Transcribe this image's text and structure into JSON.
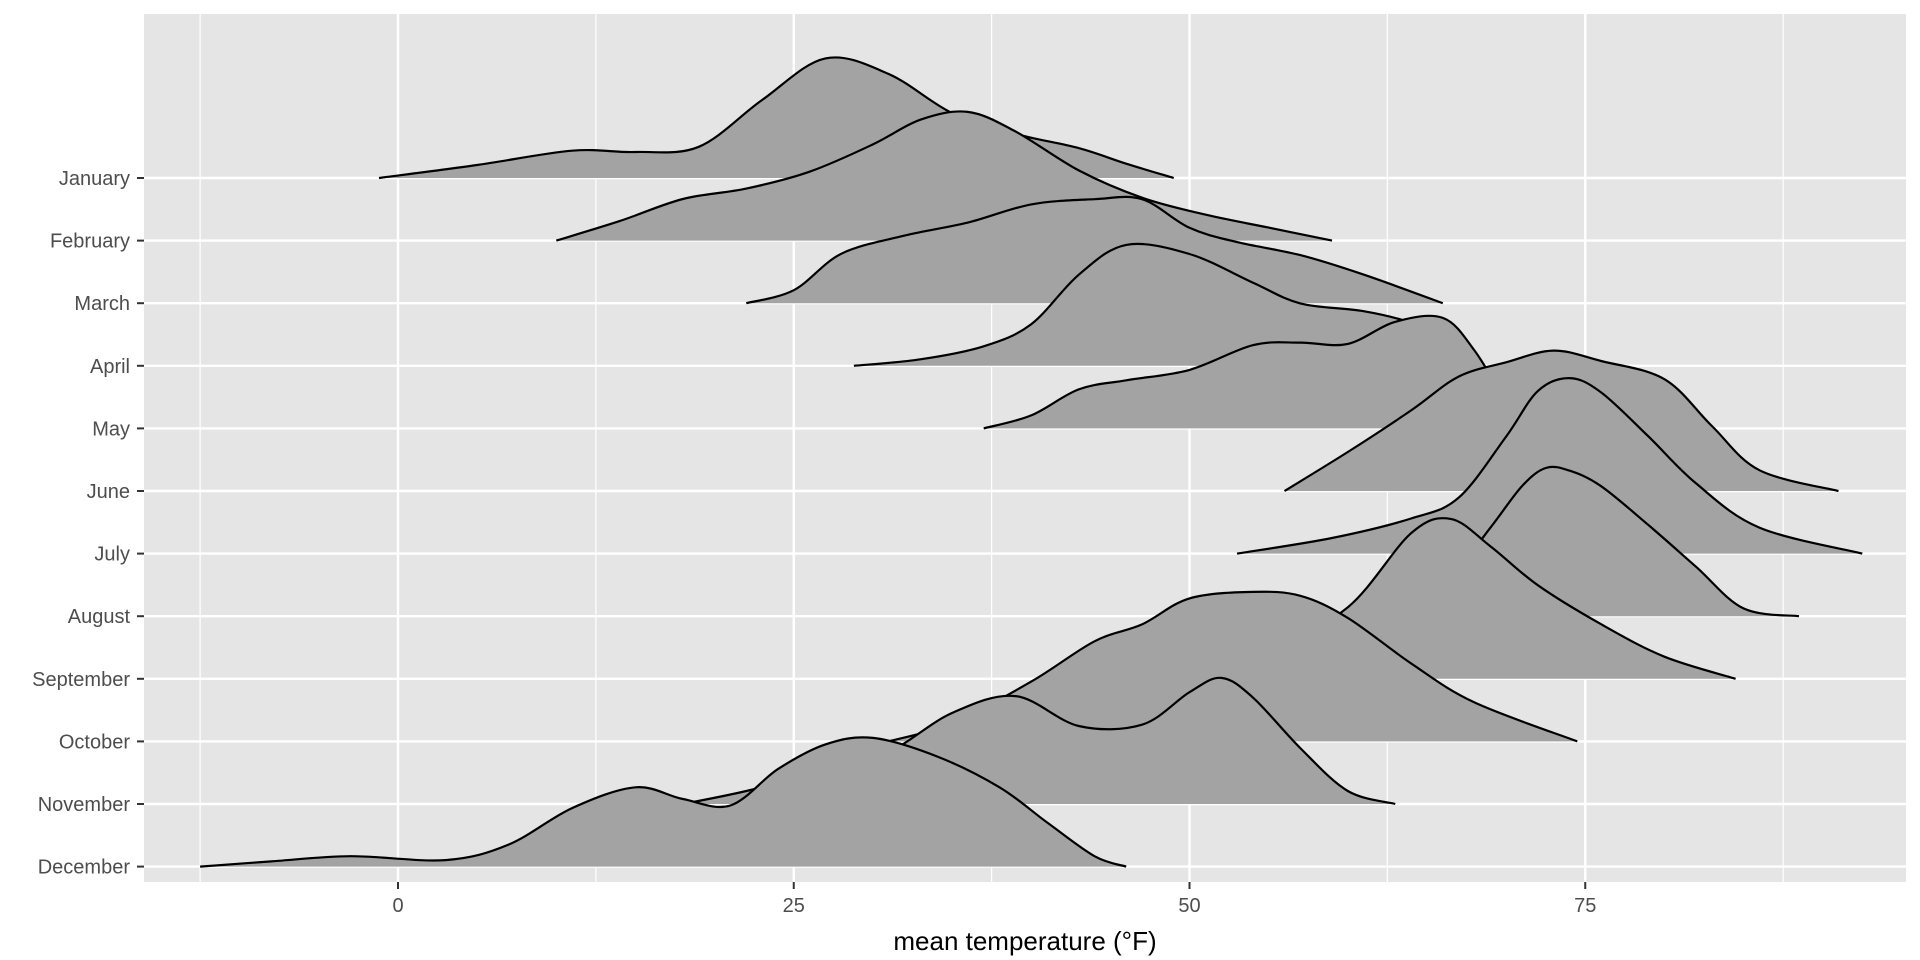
{
  "chart_data": {
    "type": "ridgeline",
    "title": "",
    "xlabel": "mean temperature (°F)",
    "ylabel": "",
    "xlim": [
      -12.5,
      95
    ],
    "x_ticks": [
      0,
      25,
      50,
      75
    ],
    "x_tick_labels": [
      "0",
      "25",
      "50",
      "75"
    ],
    "grid": true,
    "legend": "none",
    "colors": {
      "panel": "#e5e5e5",
      "grid": "#ffffff",
      "fill": "#a3a3a3",
      "outline": "#000000",
      "text": "#4d4d4d",
      "ticks": "#333333"
    },
    "categories": [
      "January",
      "February",
      "March",
      "April",
      "May",
      "June",
      "July",
      "August",
      "September",
      "October",
      "November",
      "December"
    ],
    "series": [
      {
        "name": "January",
        "points": [
          [
            -1.2,
            0.0
          ],
          [
            5,
            0.1
          ],
          [
            11,
            0.21
          ],
          [
            15,
            0.2
          ],
          [
            19,
            0.24
          ],
          [
            23,
            0.6
          ],
          [
            27,
            0.92
          ],
          [
            31,
            0.8
          ],
          [
            35,
            0.5
          ],
          [
            39,
            0.34
          ],
          [
            43,
            0.23
          ],
          [
            46,
            0.11
          ],
          [
            49,
            0.0
          ]
        ]
      },
      {
        "name": "February",
        "points": [
          [
            10,
            0.0
          ],
          [
            14,
            0.15
          ],
          [
            18,
            0.32
          ],
          [
            22,
            0.4
          ],
          [
            26,
            0.53
          ],
          [
            30,
            0.74
          ],
          [
            33,
            0.93
          ],
          [
            36,
            0.99
          ],
          [
            39,
            0.84
          ],
          [
            43,
            0.54
          ],
          [
            47,
            0.33
          ],
          [
            51,
            0.2
          ],
          [
            55,
            0.1
          ],
          [
            59,
            0.0
          ]
        ]
      },
      {
        "name": "March",
        "points": [
          [
            22,
            0.0
          ],
          [
            25,
            0.1
          ],
          [
            28,
            0.38
          ],
          [
            32,
            0.52
          ],
          [
            36,
            0.62
          ],
          [
            40,
            0.76
          ],
          [
            44,
            0.8
          ],
          [
            47,
            0.8
          ],
          [
            50,
            0.58
          ],
          [
            53,
            0.47
          ],
          [
            57,
            0.37
          ],
          [
            61,
            0.22
          ],
          [
            66,
            0.0
          ]
        ]
      },
      {
        "name": "April",
        "points": [
          [
            28.8,
            0.0
          ],
          [
            33,
            0.05
          ],
          [
            37,
            0.15
          ],
          [
            40,
            0.32
          ],
          [
            43,
            0.7
          ],
          [
            46,
            0.93
          ],
          [
            50,
            0.86
          ],
          [
            54,
            0.64
          ],
          [
            57,
            0.48
          ],
          [
            61,
            0.42
          ],
          [
            64,
            0.33
          ],
          [
            66,
            0.2
          ],
          [
            67,
            0.0
          ]
        ]
      },
      {
        "name": "May",
        "points": [
          [
            37,
            0.0
          ],
          [
            40,
            0.1
          ],
          [
            43,
            0.3
          ],
          [
            46,
            0.37
          ],
          [
            50,
            0.45
          ],
          [
            54,
            0.64
          ],
          [
            57,
            0.66
          ],
          [
            60,
            0.65
          ],
          [
            63,
            0.82
          ],
          [
            66,
            0.85
          ],
          [
            68,
            0.6
          ],
          [
            70,
            0.2
          ],
          [
            71,
            0.0
          ]
        ]
      },
      {
        "name": "June",
        "points": [
          [
            56,
            0.0
          ],
          [
            60,
            0.3
          ],
          [
            64,
            0.62
          ],
          [
            67,
            0.88
          ],
          [
            70,
            0.99
          ],
          [
            73,
            1.08
          ],
          [
            76,
            1.0
          ],
          [
            80,
            0.86
          ],
          [
            83,
            0.5
          ],
          [
            86,
            0.16
          ],
          [
            91,
            0.0
          ]
        ]
      },
      {
        "name": "July",
        "points": [
          [
            53,
            0.0
          ],
          [
            59,
            0.12
          ],
          [
            64,
            0.27
          ],
          [
            67,
            0.43
          ],
          [
            70,
            0.9
          ],
          [
            72,
            1.25
          ],
          [
            74,
            1.35
          ],
          [
            76,
            1.24
          ],
          [
            79,
            0.9
          ],
          [
            82,
            0.54
          ],
          [
            86,
            0.2
          ],
          [
            92.5,
            0.0
          ]
        ]
      },
      {
        "name": "August",
        "points": [
          [
            63,
            0.0
          ],
          [
            66,
            0.22
          ],
          [
            69,
            0.68
          ],
          [
            71,
            1.0
          ],
          [
            72.5,
            1.14
          ],
          [
            74,
            1.12
          ],
          [
            76,
            1.0
          ],
          [
            79,
            0.7
          ],
          [
            82,
            0.38
          ],
          [
            85,
            0.06
          ],
          [
            88.5,
            0.0
          ]
        ]
      },
      {
        "name": "September",
        "points": [
          [
            50,
            0.0
          ],
          [
            55,
            0.22
          ],
          [
            60,
            0.55
          ],
          [
            64,
            1.12
          ],
          [
            66.5,
            1.23
          ],
          [
            69,
            1.02
          ],
          [
            72,
            0.72
          ],
          [
            76,
            0.42
          ],
          [
            80,
            0.17
          ],
          [
            84.5,
            0.0
          ]
        ]
      },
      {
        "name": "October",
        "points": [
          [
            31,
            0.0
          ],
          [
            35,
            0.14
          ],
          [
            40,
            0.46
          ],
          [
            44,
            0.77
          ],
          [
            47,
            0.9
          ],
          [
            50,
            1.1
          ],
          [
            54,
            1.15
          ],
          [
            57,
            1.12
          ],
          [
            60,
            0.95
          ],
          [
            64,
            0.6
          ],
          [
            68,
            0.3
          ],
          [
            74.5,
            0.0
          ]
        ]
      },
      {
        "name": "November",
        "points": [
          [
            18,
            0.0
          ],
          [
            22,
            0.1
          ],
          [
            27,
            0.26
          ],
          [
            31,
            0.4
          ],
          [
            35,
            0.7
          ],
          [
            39,
            0.83
          ],
          [
            43,
            0.6
          ],
          [
            47,
            0.61
          ],
          [
            50,
            0.86
          ],
          [
            52,
            0.97
          ],
          [
            54,
            0.82
          ],
          [
            57,
            0.43
          ],
          [
            60,
            0.1
          ],
          [
            63,
            0.0
          ]
        ]
      },
      {
        "name": "December",
        "points": [
          [
            -12.5,
            0.0
          ],
          [
            -8,
            0.04
          ],
          [
            -3,
            0.08
          ],
          [
            3,
            0.05
          ],
          [
            7,
            0.17
          ],
          [
            11,
            0.45
          ],
          [
            15,
            0.61
          ],
          [
            18,
            0.52
          ],
          [
            21,
            0.47
          ],
          [
            24,
            0.75
          ],
          [
            27,
            0.94
          ],
          [
            30,
            0.99
          ],
          [
            34,
            0.85
          ],
          [
            38,
            0.61
          ],
          [
            41,
            0.34
          ],
          [
            44,
            0.08
          ],
          [
            46,
            0.0
          ]
        ]
      }
    ]
  }
}
